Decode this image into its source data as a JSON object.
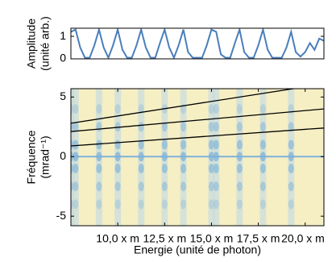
{
  "chart_data": [
    {
      "type": "line",
      "ylabel": [
        "Amplitude",
        "(unité arb.)"
      ],
      "x": [
        7.5,
        7.75,
        8.0,
        8.25,
        8.5,
        8.75,
        9.0,
        9.25,
        9.5,
        9.75,
        10.0,
        10.25,
        10.5,
        10.75,
        11.0,
        11.25,
        11.5,
        11.75,
        12.0,
        12.25,
        12.5,
        12.75,
        13.0,
        13.25,
        13.5,
        13.75,
        14.0,
        14.25,
        14.5,
        14.75,
        15.0,
        15.25,
        15.5,
        15.75,
        16.0,
        16.25,
        16.5,
        16.75,
        17.0,
        17.25,
        17.5,
        17.75,
        18.0,
        18.25,
        18.5,
        18.75,
        19.0,
        19.25,
        19.5,
        19.75,
        20.0,
        20.25,
        20.5,
        20.75,
        21.0
      ],
      "series": [
        {
          "color": "#4a7ebb",
          "values": [
            1.2,
            1.3,
            0.5,
            0.05,
            0.05,
            0.6,
            1.3,
            0.5,
            0.05,
            0.6,
            1.3,
            0.4,
            0.05,
            0.05,
            0.6,
            1.3,
            0.5,
            0.05,
            0.05,
            0.7,
            1.3,
            0.5,
            0.05,
            0.6,
            1.3,
            0.3,
            0.05,
            0.05,
            0.05,
            0.6,
            1.3,
            1.2,
            0.2,
            0.05,
            0.05,
            0.7,
            1.3,
            0.3,
            0.05,
            0.05,
            0.6,
            1.3,
            0.4,
            0.05,
            0.05,
            0.05,
            0.5,
            1.2,
            0.3,
            0.1,
            0.3,
            0.7,
            0.4,
            0.9,
            0.8
          ]
        }
      ],
      "xlim": [
        7.5,
        21
      ],
      "ylim": [
        0,
        1.36
      ],
      "yticks": [
        0,
        1
      ]
    },
    {
      "type": "line",
      "ylabel": [
        "Fréquence",
        "(mrad⁻¹)"
      ],
      "xlabel": "Energie (unité de photon)",
      "x": [
        7.5,
        21
      ],
      "series": [
        {
          "color": "#000000",
          "values": [
            2.8,
            6.1
          ]
        },
        {
          "color": "#000000",
          "values": [
            2.1,
            4.0
          ]
        },
        {
          "color": "#000000",
          "values": [
            0.9,
            2.4
          ]
        }
      ],
      "xlim": [
        7.5,
        21
      ],
      "ylim": [
        -5.8,
        5.7
      ],
      "xticks": [
        {
          "value": 10,
          "label": "10,0 x m"
        },
        {
          "value": 12.5,
          "label": "12,5 x m"
        },
        {
          "value": 15,
          "label": "15,0 x m"
        },
        {
          "value": 17.5,
          "label": "17,5 x m"
        },
        {
          "value": 20,
          "label": "20,0 x m"
        }
      ],
      "yticks": [
        -5,
        0,
        5
      ]
    }
  ]
}
